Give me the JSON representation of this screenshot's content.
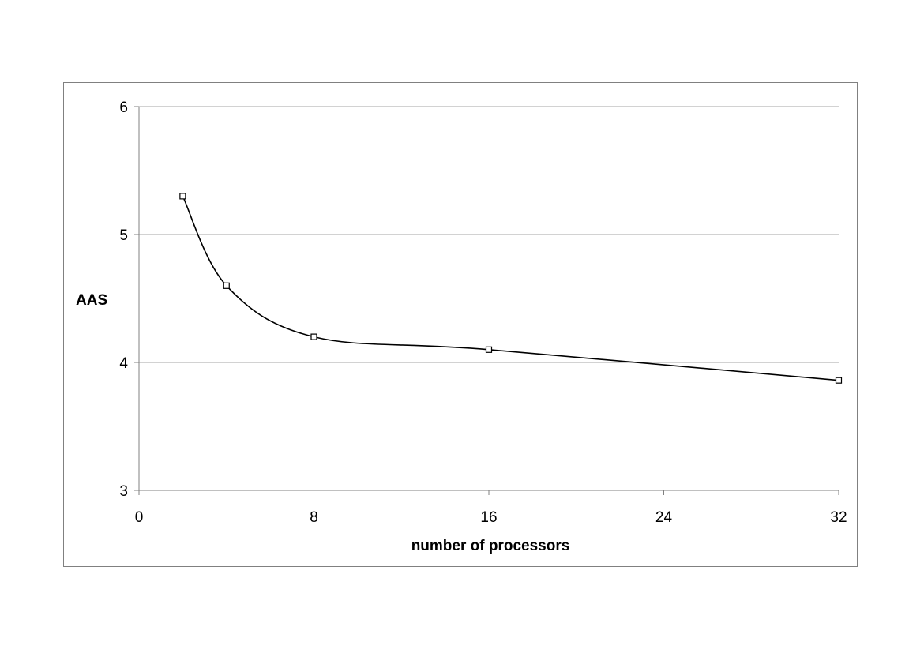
{
  "chart_data": {
    "type": "line",
    "title": "",
    "xlabel": "number of processors",
    "ylabel": "AAS",
    "xlim": [
      0,
      32
    ],
    "ylim": [
      3,
      6
    ],
    "xticks": [
      0,
      8,
      16,
      24,
      32
    ],
    "yticks": [
      3,
      4,
      5,
      6
    ],
    "xtick_labels": [
      "0",
      "8",
      "16",
      "24",
      "32"
    ],
    "ytick_labels": [
      "3",
      "4",
      "5",
      "6"
    ],
    "grid": "horizontal",
    "legend": "none",
    "smoothed": true,
    "marker": "square",
    "series": [
      {
        "x": [
          2,
          4,
          8,
          16,
          32
        ],
        "y": [
          5.3,
          4.6,
          4.2,
          4.1,
          3.86
        ]
      }
    ],
    "colors": {
      "line": "#000000",
      "grid": "#a6a6a6",
      "axis": "#808080",
      "frame": "#808080"
    }
  }
}
